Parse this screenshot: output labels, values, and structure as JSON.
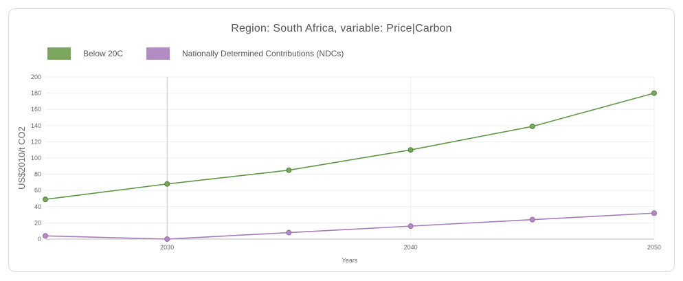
{
  "chart_data": {
    "type": "line",
    "title": "Region: South Africa, variable: Price|Carbon",
    "xlabel": "Years",
    "ylabel": "US$2010/t CO2",
    "xlim": [
      2025,
      2050
    ],
    "ylim": [
      0,
      200
    ],
    "x_ticks": [
      2030,
      2040,
      2050
    ],
    "y_ticks": [
      0,
      20,
      40,
      60,
      80,
      100,
      120,
      140,
      160,
      180,
      200
    ],
    "x": [
      2025,
      2030,
      2035,
      2040,
      2045,
      2050
    ],
    "series": [
      {
        "name": "Below 20C",
        "color": "#7aa65d",
        "values": [
          49,
          68,
          85,
          110,
          139,
          180
        ]
      },
      {
        "name": "Nationally Determined Contributions (NDCs)",
        "color": "#b48cc4",
        "values": [
          4,
          0,
          8,
          16,
          24,
          32
        ]
      }
    ],
    "legend_position": "top-left",
    "grid": true
  }
}
